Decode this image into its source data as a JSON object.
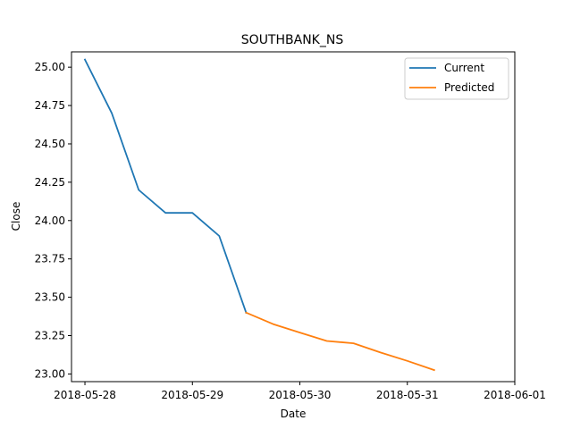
{
  "chart_data": {
    "type": "line",
    "title": "SOUTHBANK_NS",
    "xlabel": "Date",
    "ylabel": "Close",
    "x_tick_labels": [
      "2018-05-28",
      "2018-05-29",
      "2018-05-30",
      "2018-05-31",
      "2018-06-01"
    ],
    "y_tick_labels": [
      "23.00",
      "23.25",
      "23.50",
      "23.75",
      "24.00",
      "24.25",
      "24.50",
      "24.75",
      "25.00"
    ],
    "y_ticks": [
      23.0,
      23.25,
      23.5,
      23.75,
      24.0,
      24.25,
      24.5,
      24.75,
      25.0
    ],
    "xlim": [
      "2018-05-27 21:00",
      "2018-06-01 00:00"
    ],
    "ylim": [
      22.95,
      25.1
    ],
    "grid": false,
    "legend_position": "top-right",
    "series": [
      {
        "name": "Current",
        "color": "#1f77b4",
        "x": [
          "2018-05-28 00:00",
          "2018-05-28 06:00",
          "2018-05-28 12:00",
          "2018-05-28 18:00",
          "2018-05-29 00:00",
          "2018-05-29 06:00",
          "2018-05-29 12:00"
        ],
        "y": [
          25.05,
          24.7,
          24.2,
          24.05,
          24.05,
          23.9,
          23.4
        ]
      },
      {
        "name": "Predicted",
        "color": "#ff7f0e",
        "x": [
          "2018-05-29 12:00",
          "2018-05-29 18:00",
          "2018-05-30 00:00",
          "2018-05-30 06:00",
          "2018-05-30 12:00",
          "2018-05-30 18:00",
          "2018-05-31 00:00",
          "2018-05-31 06:00"
        ],
        "y": [
          23.4,
          23.325,
          23.27,
          23.215,
          23.2,
          23.14,
          23.085,
          23.025
        ]
      }
    ]
  }
}
